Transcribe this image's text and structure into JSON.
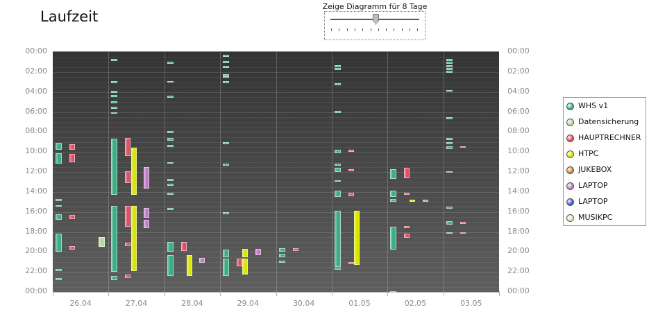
{
  "page": {
    "title": "Laufzeit"
  },
  "slider": {
    "label": "Zeige Diagramm für 8 Tage",
    "value_days": 8
  },
  "legend": {
    "items": [
      {
        "label": "WHS v1",
        "color": "#3fae86"
      },
      {
        "label": "Datensicherung",
        "color": "#b8d8a0"
      },
      {
        "label": "HAUPTRECHNER",
        "color": "#e24e63"
      },
      {
        "label": "HTPC",
        "color": "#d9e600"
      },
      {
        "label": "JUKEBOX",
        "color": "#d08a3a"
      },
      {
        "label": "LAPTOP",
        "color": "#c07cc6"
      },
      {
        "label": "LAPTOP",
        "color": "#3a5fe0"
      },
      {
        "label": "MUSIKPC",
        "color": "#d6efbf"
      }
    ]
  },
  "chart_data": {
    "type": "bar",
    "x_categories": [
      "26.04",
      "27.04",
      "28.04",
      "29.04",
      "30.04",
      "01.05",
      "02.05",
      "03.05"
    ],
    "y_ticks": [
      "00:00",
      "02:00",
      "04:00",
      "06:00",
      "08:00",
      "10:00",
      "12:00",
      "14:00",
      "16:00",
      "18:00",
      "20:00",
      "22:00",
      "00:00"
    ],
    "ylim_hours": [
      0,
      24
    ],
    "series_slots": {
      "WHS v1": 0.05,
      "Datensicherung": 0.0,
      "HAUPTRECHNER": 0.3,
      "HTPC": 0.4,
      "LAPTOP_pink": 0.63,
      "LAPTOP_blue": 0.8
    },
    "intervals": [
      {
        "series": "WHS v1",
        "day": 0,
        "start": 9.1,
        "end": 9.8
      },
      {
        "series": "WHS v1",
        "day": 0,
        "start": 10.1,
        "end": 11.2
      },
      {
        "series": "WHS v1",
        "day": 0,
        "start": 14.7,
        "end": 14.9
      },
      {
        "series": "WHS v1",
        "day": 0,
        "start": 15.3,
        "end": 15.5
      },
      {
        "series": "WHS v1",
        "day": 0,
        "start": 16.2,
        "end": 16.8
      },
      {
        "series": "WHS v1",
        "day": 0,
        "start": 18.2,
        "end": 20.0
      },
      {
        "series": "WHS v1",
        "day": 0,
        "start": 21.7,
        "end": 21.9
      },
      {
        "series": "WHS v1",
        "day": 0,
        "start": 22.6,
        "end": 22.8
      },
      {
        "series": "HAUPTRECHNER",
        "day": 0,
        "start": 9.2,
        "end": 9.8
      },
      {
        "series": "HAUPTRECHNER",
        "day": 0,
        "start": 10.2,
        "end": 11.0
      },
      {
        "series": "HAUPTRECHNER",
        "day": 0,
        "start": 16.3,
        "end": 16.7
      },
      {
        "series": "HAUPTRECHNER",
        "day": 0,
        "start": 19.4,
        "end": 19.8
      },
      {
        "series": "Datensicherung",
        "day": 0.95,
        "start": 18.5,
        "end": 19.5
      },
      {
        "series": "WHS v1",
        "day": 1,
        "start": 0.7,
        "end": 0.8
      },
      {
        "series": "WHS v1",
        "day": 1,
        "start": 2.9,
        "end": 3.1
      },
      {
        "series": "WHS v1",
        "day": 1,
        "start": 3.9,
        "end": 4.1
      },
      {
        "series": "WHS v1",
        "day": 1,
        "start": 4.3,
        "end": 4.5
      },
      {
        "series": "WHS v1",
        "day": 1,
        "start": 4.9,
        "end": 5.1
      },
      {
        "series": "WHS v1",
        "day": 1,
        "start": 5.5,
        "end": 5.7
      },
      {
        "series": "WHS v1",
        "day": 1,
        "start": 6.0,
        "end": 6.2
      },
      {
        "series": "WHS v1",
        "day": 1,
        "start": 8.7,
        "end": 14.3
      },
      {
        "series": "WHS v1",
        "day": 1,
        "start": 15.4,
        "end": 22.0
      },
      {
        "series": "WHS v1",
        "day": 1,
        "start": 22.4,
        "end": 22.8
      },
      {
        "series": "HAUPTRECHNER",
        "day": 1,
        "start": 8.6,
        "end": 10.4
      },
      {
        "series": "HAUPTRECHNER",
        "day": 1,
        "start": 11.9,
        "end": 13.1
      },
      {
        "series": "HAUPTRECHNER",
        "day": 1,
        "start": 15.4,
        "end": 17.5
      },
      {
        "series": "HAUPTRECHNER",
        "day": 1,
        "start": 19.1,
        "end": 19.4
      },
      {
        "series": "HAUPTRECHNER",
        "day": 1,
        "start": 22.3,
        "end": 22.6
      },
      {
        "series": "HTPC",
        "day": 1,
        "start": 9.6,
        "end": 14.3
      },
      {
        "series": "HTPC",
        "day": 1,
        "start": 15.4,
        "end": 21.9
      },
      {
        "series": "LAPTOP_pink",
        "day": 1,
        "start": 11.5,
        "end": 13.7
      },
      {
        "series": "LAPTOP_pink",
        "day": 1,
        "start": 15.6,
        "end": 16.6
      },
      {
        "series": "LAPTOP_pink",
        "day": 1,
        "start": 16.8,
        "end": 17.6
      },
      {
        "series": "WHS v1",
        "day": 2,
        "start": 1.0,
        "end": 1.2
      },
      {
        "series": "WHS v1",
        "day": 2,
        "start": 2.9,
        "end": 3.0
      },
      {
        "series": "WHS v1",
        "day": 2,
        "start": 4.4,
        "end": 4.5
      },
      {
        "series": "WHS v1",
        "day": 2,
        "start": 7.9,
        "end": 8.1
      },
      {
        "series": "WHS v1",
        "day": 2,
        "start": 8.6,
        "end": 8.9
      },
      {
        "series": "WHS v1",
        "day": 2,
        "start": 9.3,
        "end": 9.5
      },
      {
        "series": "WHS v1",
        "day": 2,
        "start": 11.0,
        "end": 11.2
      },
      {
        "series": "WHS v1",
        "day": 2,
        "start": 12.7,
        "end": 12.9
      },
      {
        "series": "WHS v1",
        "day": 2,
        "start": 13.2,
        "end": 13.4
      },
      {
        "series": "WHS v1",
        "day": 2,
        "start": 14.1,
        "end": 14.2
      },
      {
        "series": "WHS v1",
        "day": 2,
        "start": 15.6,
        "end": 15.8
      },
      {
        "series": "WHS v1",
        "day": 2,
        "start": 19.0,
        "end": 20.0
      },
      {
        "series": "WHS v1",
        "day": 2,
        "start": 20.3,
        "end": 22.4
      },
      {
        "series": "HAUPTRECHNER",
        "day": 2,
        "start": 19.0,
        "end": 19.9
      },
      {
        "series": "HTPC",
        "day": 2,
        "start": 20.3,
        "end": 22.4
      },
      {
        "series": "LAPTOP_pink",
        "day": 2,
        "start": 20.6,
        "end": 21.1
      },
      {
        "series": "WHS v1",
        "day": 3,
        "start": 0.3,
        "end": 0.5
      },
      {
        "series": "WHS v1",
        "day": 3,
        "start": 0.9,
        "end": 1.1
      },
      {
        "series": "WHS v1",
        "day": 3,
        "start": 1.4,
        "end": 1.6
      },
      {
        "series": "WHS v1",
        "day": 3,
        "start": 2.2,
        "end": 2.4
      },
      {
        "series": "WHS v1",
        "day": 3,
        "start": 2.4,
        "end": 2.6
      },
      {
        "series": "WHS v1",
        "day": 3,
        "start": 2.9,
        "end": 3.1
      },
      {
        "series": "WHS v1",
        "day": 3,
        "start": 9.0,
        "end": 9.2
      },
      {
        "series": "WHS v1",
        "day": 3,
        "start": 11.2,
        "end": 11.4
      },
      {
        "series": "WHS v1",
        "day": 3,
        "start": 16.0,
        "end": 16.2
      },
      {
        "series": "WHS v1",
        "day": 3,
        "start": 19.8,
        "end": 20.5
      },
      {
        "series": "WHS v1",
        "day": 3,
        "start": 20.7,
        "end": 22.4
      },
      {
        "series": "HAUPTRECHNER",
        "day": 3,
        "start": 20.7,
        "end": 21.4
      },
      {
        "series": "HTPC",
        "day": 3,
        "start": 19.7,
        "end": 20.5
      },
      {
        "series": "HTPC",
        "day": 3,
        "start": 20.7,
        "end": 22.3
      },
      {
        "series": "LAPTOP_pink",
        "day": 3,
        "start": 19.7,
        "end": 20.3
      },
      {
        "series": "WHS v1",
        "day": 4,
        "start": 19.6,
        "end": 20.0
      },
      {
        "series": "WHS v1",
        "day": 4,
        "start": 20.2,
        "end": 20.5
      },
      {
        "series": "WHS v1",
        "day": 4,
        "start": 20.9,
        "end": 21.1
      },
      {
        "series": "HAUPTRECHNER",
        "day": 4,
        "start": 19.6,
        "end": 19.9
      },
      {
        "series": "WHS v1",
        "day": 5,
        "start": 1.3,
        "end": 1.5
      },
      {
        "series": "WHS v1",
        "day": 5,
        "start": 1.6,
        "end": 1.8
      },
      {
        "series": "WHS v1",
        "day": 5,
        "start": 3.1,
        "end": 3.3
      },
      {
        "series": "WHS v1",
        "day": 5,
        "start": 5.9,
        "end": 6.1
      },
      {
        "series": "WHS v1",
        "day": 5,
        "start": 9.8,
        "end": 10.1
      },
      {
        "series": "WHS v1",
        "day": 5,
        "start": 11.2,
        "end": 11.4
      },
      {
        "series": "WHS v1",
        "day": 5,
        "start": 11.6,
        "end": 12.0
      },
      {
        "series": "WHS v1",
        "day": 5,
        "start": 12.8,
        "end": 13.0
      },
      {
        "series": "WHS v1",
        "day": 5,
        "start": 13.9,
        "end": 14.5
      },
      {
        "series": "WHS v1",
        "day": 5,
        "start": 15.9,
        "end": 21.5
      },
      {
        "series": "WHS v1",
        "day": 5,
        "start": 21.6,
        "end": 21.8
      },
      {
        "series": "HAUPTRECHNER",
        "day": 5,
        "start": 9.8,
        "end": 10.0
      },
      {
        "series": "HAUPTRECHNER",
        "day": 5,
        "start": 11.7,
        "end": 11.9
      },
      {
        "series": "HAUPTRECHNER",
        "day": 5,
        "start": 14.1,
        "end": 14.4
      },
      {
        "series": "HAUPTRECHNER",
        "day": 5,
        "start": 21.0,
        "end": 21.2
      },
      {
        "series": "HTPC",
        "day": 5,
        "start": 15.9,
        "end": 21.3
      },
      {
        "series": "WHS v1",
        "day": 6,
        "start": 11.7,
        "end": 12.7
      },
      {
        "series": "WHS v1",
        "day": 6,
        "start": 13.9,
        "end": 14.5
      },
      {
        "series": "WHS v1",
        "day": 6,
        "start": 14.7,
        "end": 15.0
      },
      {
        "series": "WHS v1",
        "day": 6,
        "start": 17.5,
        "end": 19.8
      },
      {
        "series": "WHS v1",
        "day": 6,
        "start": 23.9,
        "end": 24.0
      },
      {
        "series": "HAUPTRECHNER",
        "day": 6,
        "start": 11.6,
        "end": 12.6
      },
      {
        "series": "HAUPTRECHNER",
        "day": 6,
        "start": 14.1,
        "end": 14.3
      },
      {
        "series": "HAUPTRECHNER",
        "day": 6,
        "start": 17.4,
        "end": 17.6
      },
      {
        "series": "HAUPTRECHNER",
        "day": 6,
        "start": 18.2,
        "end": 18.6
      },
      {
        "series": "HTPC",
        "day": 6,
        "start": 14.8,
        "end": 14.95
      },
      {
        "series": "LAPTOP_pink",
        "day": 6,
        "start": 14.8,
        "end": 14.95
      },
      {
        "series": "WHS v1",
        "day": 7,
        "start": 0.7,
        "end": 0.9
      },
      {
        "series": "WHS v1",
        "day": 7,
        "start": 1.0,
        "end": 1.2
      },
      {
        "series": "WHS v1",
        "day": 7,
        "start": 1.3,
        "end": 1.5
      },
      {
        "series": "WHS v1",
        "day": 7,
        "start": 1.6,
        "end": 1.8
      },
      {
        "series": "WHS v1",
        "day": 7,
        "start": 1.9,
        "end": 2.1
      },
      {
        "series": "WHS v1",
        "day": 7,
        "start": 3.8,
        "end": 3.9
      },
      {
        "series": "WHS v1",
        "day": 7,
        "start": 6.5,
        "end": 6.7
      },
      {
        "series": "WHS v1",
        "day": 7,
        "start": 8.6,
        "end": 8.8
      },
      {
        "series": "WHS v1",
        "day": 7,
        "start": 9.0,
        "end": 9.2
      },
      {
        "series": "WHS v1",
        "day": 7,
        "start": 9.4,
        "end": 9.7
      },
      {
        "series": "WHS v1",
        "day": 7,
        "start": 11.9,
        "end": 12.1
      },
      {
        "series": "WHS v1",
        "day": 7,
        "start": 15.5,
        "end": 15.6
      },
      {
        "series": "WHS v1",
        "day": 7,
        "start": 16.9,
        "end": 17.3
      },
      {
        "series": "WHS v1",
        "day": 7,
        "start": 18.0,
        "end": 18.1
      },
      {
        "series": "HAUPTRECHNER",
        "day": 7,
        "start": 9.4,
        "end": 9.6
      },
      {
        "series": "HAUPTRECHNER",
        "day": 7,
        "start": 17.0,
        "end": 17.2
      },
      {
        "series": "HAUPTRECHNER",
        "day": 7,
        "start": 18.0,
        "end": 18.2
      }
    ]
  }
}
